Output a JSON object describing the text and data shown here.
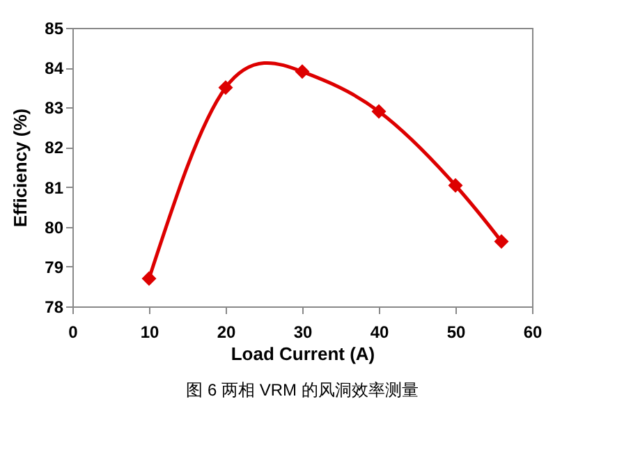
{
  "chart_data": {
    "type": "line",
    "xlabel": "Load Current (A)",
    "ylabel": "Efficiency (%)",
    "x": [
      10,
      20,
      30,
      40,
      50,
      56
    ],
    "series": [
      {
        "color": "#dd0000",
        "values": [
          78.7,
          83.5,
          83.9,
          82.9,
          81.04,
          79.63
        ]
      }
    ],
    "xlim": [
      0,
      60
    ],
    "xticks": [
      0,
      10,
      20,
      30,
      40,
      50,
      60
    ],
    "ylim": [
      78,
      85
    ],
    "yticks": [
      78,
      79,
      80,
      81,
      82,
      83,
      84,
      85
    ],
    "grid": false,
    "marker": "diamond",
    "line_style": "solid",
    "annotations": [
      "图 6 两相 VRM 的风洞效率测量"
    ]
  }
}
